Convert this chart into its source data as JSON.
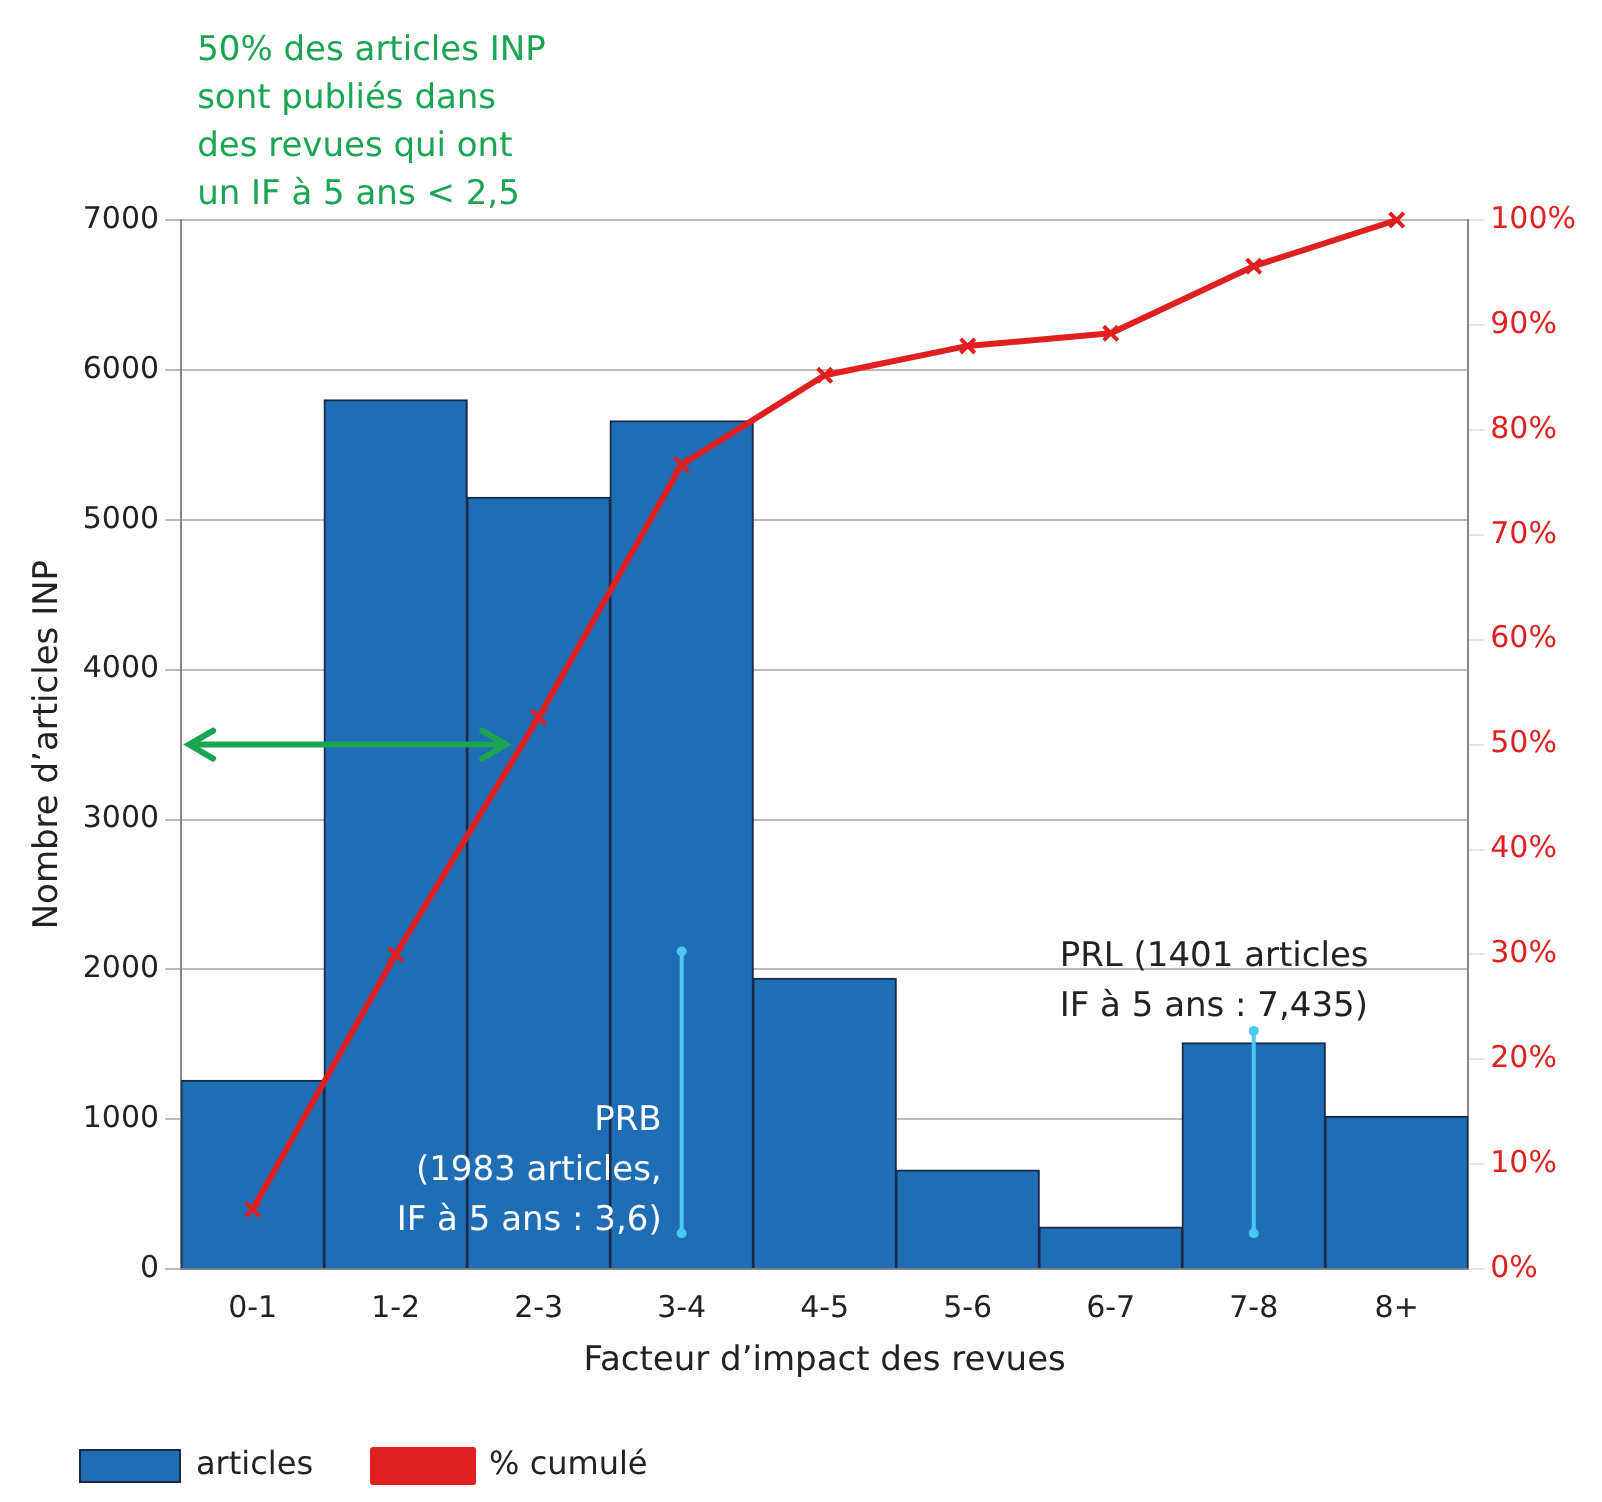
{
  "chart_data": {
    "type": "bar",
    "xlabel": "Facteur d’impact des revues",
    "ylabel": "Nombre d’articles INP",
    "categories": [
      "0-1",
      "1-2",
      "2-3",
      "3-4",
      "4-5",
      "5-6",
      "6-7",
      "7-8",
      "8+"
    ],
    "series": [
      {
        "name": "articles",
        "color": "#1f6db5",
        "values": [
          1260,
          5800,
          5150,
          5660,
          1940,
          660,
          280,
          1510,
          1020
        ]
      },
      {
        "name": "% cumulé",
        "type": "line",
        "axis": "y2",
        "color": "#e02020",
        "marker": "cross",
        "values": [
          5.7,
          30,
          52.6,
          76.7,
          85.2,
          88,
          89.2,
          95.6,
          100
        ]
      }
    ],
    "ylim": [
      0,
      7000
    ],
    "yticks": [
      0,
      1000,
      2000,
      3000,
      4000,
      5000,
      6000,
      7000
    ],
    "y2lim": [
      0,
      100
    ],
    "y2ticks": [
      {
        "value": 0,
        "label": "0%"
      },
      {
        "value": 10,
        "label": "10%"
      },
      {
        "value": 20,
        "label": "20%"
      },
      {
        "value": 30,
        "label": "30%"
      },
      {
        "value": 40,
        "label": "40%"
      },
      {
        "value": 50,
        "label": "50%"
      },
      {
        "value": 60,
        "label": "60%"
      },
      {
        "value": 70,
        "label": "70%"
      },
      {
        "value": 80,
        "label": "80%"
      },
      {
        "value": 90,
        "label": "90%"
      },
      {
        "value": 100,
        "label": "100%"
      }
    ],
    "grid": "y",
    "legend": "bottom left",
    "annotations": [
      "50% des articles INP\nsont publiés dans\ndes revues qui ont\nun IF à 5 ans < 2,5",
      {
        "text": "PRB\n(1983 articles,\nIF à 5 ans : 3,6)",
        "x": "3-4",
        "y": 2120
      },
      {
        "text": "PRL (1401 articles\nIF à 5 ans : 7,435)",
        "x": "7-8",
        "y": 1590
      }
    ]
  }
}
